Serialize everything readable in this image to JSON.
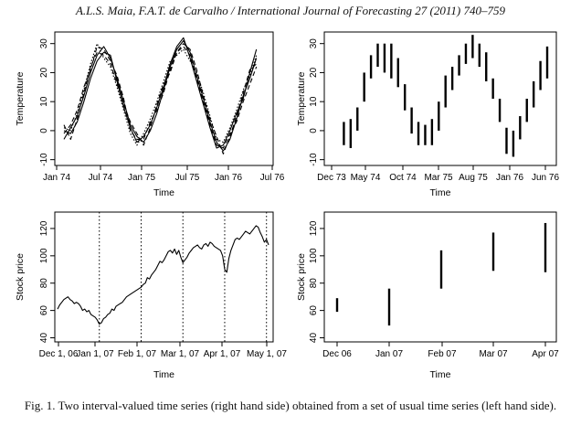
{
  "header": "A.L.S. Maia, F.A.T. de Carvalho / International Journal of Forecasting 27 (2011) 740–759",
  "caption": "Fig. 1.  Two interval-valued time series (right hand side) obtained from a set of usual time series (left hand side).",
  "chart_data": [
    {
      "type": "line",
      "xlabel": "Time",
      "ylabel": "Temperature",
      "x_tick_labels": [
        "Jan 74",
        "Jul 74",
        "Jan 75",
        "Jul 75",
        "Jan 76",
        "Jul 76"
      ],
      "y_ticks": [
        -10,
        0,
        10,
        20,
        30
      ],
      "ylim": [
        -12,
        34
      ],
      "x_month_range": [
        0,
        30
      ],
      "grid": false,
      "series": [
        {
          "x": [
            0,
            1,
            2,
            3,
            4,
            5,
            6,
            7,
            8,
            9,
            10,
            11,
            12,
            13,
            14,
            15,
            16,
            17,
            18,
            19,
            20,
            21,
            22,
            23,
            24,
            25,
            26,
            27,
            28,
            29
          ],
          "values": [
            -3,
            1,
            5,
            12,
            20,
            26,
            29,
            25,
            18,
            10,
            2,
            -2,
            -4,
            0,
            6,
            14,
            22,
            28,
            31,
            27,
            19,
            11,
            3,
            -4,
            -7,
            -3,
            4,
            12,
            18,
            25
          ],
          "dash": "solid"
        },
        {
          "x": [
            0,
            1,
            2,
            3,
            4,
            5,
            6,
            7,
            8,
            9,
            10,
            11,
            12,
            13,
            14,
            15,
            16,
            17,
            18,
            19,
            20,
            21,
            22,
            23,
            24,
            25,
            26,
            27,
            28,
            29
          ],
          "values": [
            0,
            -1,
            3,
            10,
            18,
            24,
            27,
            26,
            17,
            8,
            1,
            -4,
            -2,
            2,
            8,
            15,
            23,
            29,
            32,
            25,
            17,
            9,
            1,
            -6,
            -5,
            0,
            6,
            11,
            20,
            28
          ],
          "dash": "solid"
        },
        {
          "x": [
            0,
            1,
            2,
            3,
            4,
            5,
            6,
            7,
            8,
            9,
            10,
            11,
            12,
            13,
            14,
            15,
            16,
            17,
            18,
            19,
            20,
            21,
            22,
            23,
            24,
            25,
            26,
            27,
            28,
            29
          ],
          "values": [
            2,
            -3,
            4,
            13,
            22,
            27,
            26,
            23,
            16,
            9,
            3,
            -1,
            -5,
            1,
            9,
            16,
            20,
            27,
            30,
            28,
            21,
            12,
            4,
            -2,
            -8,
            -2,
            5,
            13,
            21,
            23
          ],
          "dash": "dashed"
        },
        {
          "x": [
            0,
            1,
            2,
            3,
            4,
            5,
            6,
            7,
            8,
            9,
            10,
            11,
            12,
            13,
            14,
            15,
            16,
            17,
            18,
            19,
            20,
            21,
            22,
            23,
            24,
            25,
            26,
            27,
            28,
            29
          ],
          "values": [
            -1,
            2,
            7,
            15,
            21,
            29,
            28,
            24,
            19,
            11,
            0,
            -3,
            -3,
            3,
            7,
            13,
            21,
            27,
            29,
            26,
            18,
            10,
            2,
            -5,
            -6,
            -1,
            3,
            10,
            16,
            22
          ],
          "dash": "dashed"
        },
        {
          "x": [
            0,
            1,
            2,
            3,
            4,
            5,
            6,
            7,
            8,
            9,
            10,
            11,
            12,
            13,
            14,
            15,
            16,
            17,
            18,
            19,
            20,
            21,
            22,
            23,
            24,
            25,
            26,
            27,
            28,
            29
          ],
          "values": [
            1,
            0,
            6,
            14,
            23,
            30,
            25,
            22,
            15,
            7,
            -1,
            -5,
            -1,
            4,
            10,
            17,
            24,
            26,
            28,
            24,
            20,
            13,
            5,
            -3,
            -4,
            1,
            7,
            14,
            19,
            26
          ],
          "dash": "dotted"
        }
      ]
    },
    {
      "type": "interval",
      "xlabel": "Time",
      "ylabel": "Temperature",
      "x_tick_labels": [
        "Dec 73",
        "May 74",
        "Oct 74",
        "Mar 75",
        "Aug 75",
        "Jan 76",
        "Jun 76"
      ],
      "y_ticks": [
        -10,
        0,
        10,
        20,
        30
      ],
      "ylim": [
        -12,
        34
      ],
      "x_month_range": [
        -1,
        30
      ],
      "grid": false,
      "intervals": [
        {
          "x": 0,
          "low": -5,
          "high": 3
        },
        {
          "x": 1,
          "low": -6,
          "high": 4
        },
        {
          "x": 2,
          "low": 0,
          "high": 8
        },
        {
          "x": 3,
          "low": 10,
          "high": 20
        },
        {
          "x": 4,
          "low": 18,
          "high": 26
        },
        {
          "x": 5,
          "low": 22,
          "high": 30
        },
        {
          "x": 6,
          "low": 20,
          "high": 30
        },
        {
          "x": 7,
          "low": 18,
          "high": 30
        },
        {
          "x": 8,
          "low": 15,
          "high": 25
        },
        {
          "x": 9,
          "low": 7,
          "high": 16
        },
        {
          "x": 10,
          "low": -1,
          "high": 8
        },
        {
          "x": 11,
          "low": -5,
          "high": 3
        },
        {
          "x": 12,
          "low": -5,
          "high": 2
        },
        {
          "x": 13,
          "low": -5,
          "high": 4
        },
        {
          "x": 14,
          "low": 0,
          "high": 10
        },
        {
          "x": 15,
          "low": 8,
          "high": 19
        },
        {
          "x": 16,
          "low": 14,
          "high": 22
        },
        {
          "x": 17,
          "low": 19,
          "high": 26
        },
        {
          "x": 18,
          "low": 23,
          "high": 30
        },
        {
          "x": 19,
          "low": 25,
          "high": 33
        },
        {
          "x": 20,
          "low": 22,
          "high": 30
        },
        {
          "x": 21,
          "low": 17,
          "high": 27
        },
        {
          "x": 22,
          "low": 11,
          "high": 18
        },
        {
          "x": 23,
          "low": 3,
          "high": 11
        },
        {
          "x": 24,
          "low": -8,
          "high": 1
        },
        {
          "x": 25,
          "low": -9,
          "high": 0
        },
        {
          "x": 26,
          "low": -3,
          "high": 5
        },
        {
          "x": 27,
          "low": 3,
          "high": 11
        },
        {
          "x": 28,
          "low": 8,
          "high": 17
        },
        {
          "x": 29,
          "low": 14,
          "high": 24
        },
        {
          "x": 30,
          "low": 18,
          "high": 29
        }
      ]
    },
    {
      "type": "line",
      "xlabel": "Time",
      "ylabel": "Stock price",
      "x_tick_labels": [
        "Dec 1, 06",
        "Jan 1, 07",
        "Feb 1, 07",
        "Mar 1, 07",
        "Apr 1, 07",
        "May 1, 07"
      ],
      "y_ticks": [
        40,
        60,
        80,
        100,
        120
      ],
      "ylim": [
        37,
        132
      ],
      "x_month_range": [
        0,
        5.05
      ],
      "grid": false,
      "vertical_dotted_lines": [
        1,
        2,
        3,
        4,
        5
      ],
      "series": [
        {
          "x": [
            0,
            0.05,
            0.1,
            0.15,
            0.2,
            0.25,
            0.3,
            0.35,
            0.4,
            0.45,
            0.5,
            0.55,
            0.6,
            0.65,
            0.7,
            0.75,
            0.8,
            0.85,
            0.9,
            0.95,
            1.0,
            1.05,
            1.1,
            1.15,
            1.2,
            1.25,
            1.3,
            1.35,
            1.4,
            1.45,
            1.5,
            1.55,
            1.6,
            1.65,
            1.7,
            1.75,
            1.8,
            1.85,
            1.9,
            1.95,
            2.0,
            2.05,
            2.1,
            2.15,
            2.2,
            2.25,
            2.3,
            2.35,
            2.4,
            2.45,
            2.5,
            2.55,
            2.6,
            2.65,
            2.7,
            2.75,
            2.8,
            2.85,
            2.9,
            2.95,
            3.0,
            3.05,
            3.1,
            3.15,
            3.2,
            3.25,
            3.3,
            3.35,
            3.4,
            3.45,
            3.5,
            3.55,
            3.6,
            3.65,
            3.7,
            3.75,
            3.8,
            3.85,
            3.9,
            3.95,
            4.0,
            4.05,
            4.1,
            4.15,
            4.2,
            4.25,
            4.3,
            4.35,
            4.4,
            4.45,
            4.5,
            4.55,
            4.6,
            4.65,
            4.7,
            4.75,
            4.8,
            4.85,
            4.9,
            4.95,
            5.0,
            5.05
          ],
          "values": [
            61,
            64,
            66,
            68,
            69,
            70,
            68,
            67,
            65,
            66,
            65,
            63,
            60,
            61,
            59,
            60,
            57,
            56,
            55,
            53,
            50,
            51,
            54,
            55,
            57,
            58,
            61,
            60,
            63,
            64,
            65,
            66,
            68,
            70,
            71,
            72,
            73,
            74,
            75,
            76,
            77,
            79,
            80,
            84,
            83,
            86,
            88,
            90,
            93,
            96,
            95,
            97,
            100,
            103,
            104,
            102,
            105,
            101,
            104,
            99,
            95,
            97,
            99,
            102,
            104,
            106,
            107,
            108,
            106,
            105,
            108,
            109,
            107,
            110,
            109,
            107,
            106,
            105,
            104,
            100,
            90,
            88,
            98,
            104,
            108,
            112,
            113,
            112,
            114,
            116,
            118,
            117,
            116,
            118,
            120,
            122,
            121,
            117,
            114,
            110,
            112,
            108
          ],
          "dash": "solid"
        }
      ]
    },
    {
      "type": "interval",
      "xlabel": "Time",
      "ylabel": "Stock price",
      "x_tick_labels": [
        "Dec 06",
        "Jan 07",
        "Feb 07",
        "Mar 07",
        "Apr 07"
      ],
      "y_ticks": [
        40,
        60,
        80,
        100,
        120
      ],
      "ylim": [
        37,
        132
      ],
      "x_month_range": [
        0,
        4
      ],
      "grid": false,
      "intervals": [
        {
          "x": 0,
          "low": 59,
          "high": 69
        },
        {
          "x": 1,
          "low": 49,
          "high": 76
        },
        {
          "x": 2,
          "low": 76,
          "high": 104
        },
        {
          "x": 3,
          "low": 89,
          "high": 117
        },
        {
          "x": 4,
          "low": 88,
          "high": 124
        }
      ]
    }
  ]
}
